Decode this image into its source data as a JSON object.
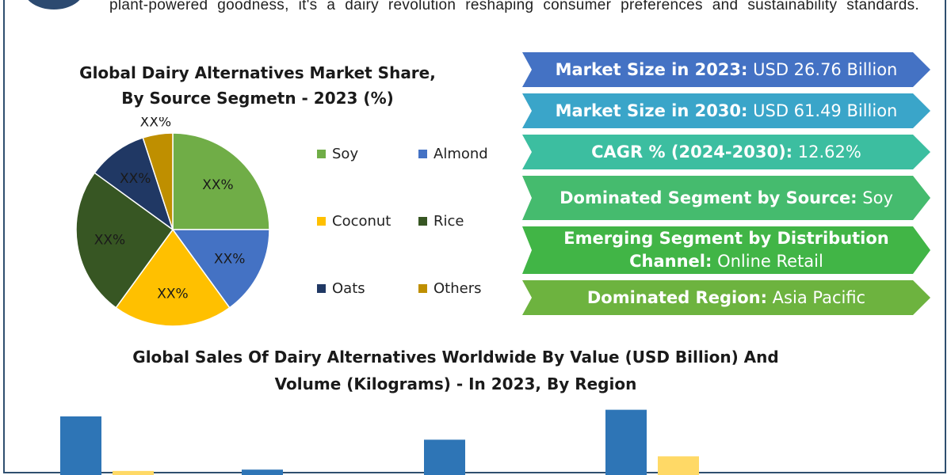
{
  "intro": {
    "text": "plant-powered goodness, it's a dairy revolution reshaping consumer preferences and sustainability standards."
  },
  "colors": {
    "soy": "#70ad47",
    "almond": "#4472c4",
    "coconut": "#ffc000",
    "rice": "#375623",
    "oats": "#203864",
    "others": "#bf8f00",
    "bar_value": "#2e75b6",
    "bar_volume": "#ffd966"
  },
  "pie": {
    "title_line1": "Global Dairy Alternatives Market Share,",
    "title_line2": "By Source Segmetn - 2023 (%)",
    "legend": [
      {
        "label": "Soy",
        "color": "#70ad47"
      },
      {
        "label": "Almond",
        "color": "#4472c4"
      },
      {
        "label": "Coconut",
        "color": "#ffc000"
      },
      {
        "label": "Rice",
        "color": "#375623"
      },
      {
        "label": "Oats",
        "color": "#203864"
      },
      {
        "label": "Others",
        "color": "#bf8f00"
      }
    ]
  },
  "stats": [
    {
      "label": "Market Size in 2023:",
      "value": "USD 26.76 Billion",
      "color": "#4472c4"
    },
    {
      "label": "Market Size in 2030:",
      "value": "USD 61.49 Billion",
      "color": "#3aa5c9"
    },
    {
      "label": "CAGR % (2024-2030):",
      "value": "12.62%",
      "color": "#3cbea0"
    },
    {
      "label": "Dominated Segment by Source:",
      "value": "Soy",
      "color": "#45bb6e"
    },
    {
      "label": "Emerging Segment by Distribution Channel:",
      "value": "Online Retail",
      "color": "#41b546"
    },
    {
      "label": "Dominated Region:",
      "value": "Asia Pacific",
      "color": "#6db33f"
    }
  ],
  "bar_chart": {
    "title_line1": "Global Sales Of Dairy Alternatives Worldwide By Value (USD Billion) And",
    "title_line2": "Volume (Kilograms) - In 2023, By Region"
  },
  "chart_data": [
    {
      "type": "pie",
      "title": "Global Dairy Alternatives Market Share, By Source Segmetn - 2023 (%)",
      "categories": [
        "Soy",
        "Almond",
        "Coconut",
        "Rice",
        "Oats",
        "Others"
      ],
      "values": [
        25,
        15,
        20,
        25,
        10,
        5
      ],
      "slice_labels": [
        "XX%",
        "XX%",
        "XX%",
        "XX%",
        "XX%",
        "XX%"
      ],
      "legend": "right"
    },
    {
      "type": "bar",
      "title": "Global Sales Of Dairy Alternatives Worldwide By Value (USD Billion) And Volume (Kilograms) - In 2023, By Region",
      "categories": [
        "",
        "",
        "",
        ""
      ],
      "series": [
        {
          "values": [
            100,
            20,
            65,
            110
          ]
        },
        {
          "values": [
            18,
            0,
            0,
            40
          ]
        }
      ]
    }
  ]
}
